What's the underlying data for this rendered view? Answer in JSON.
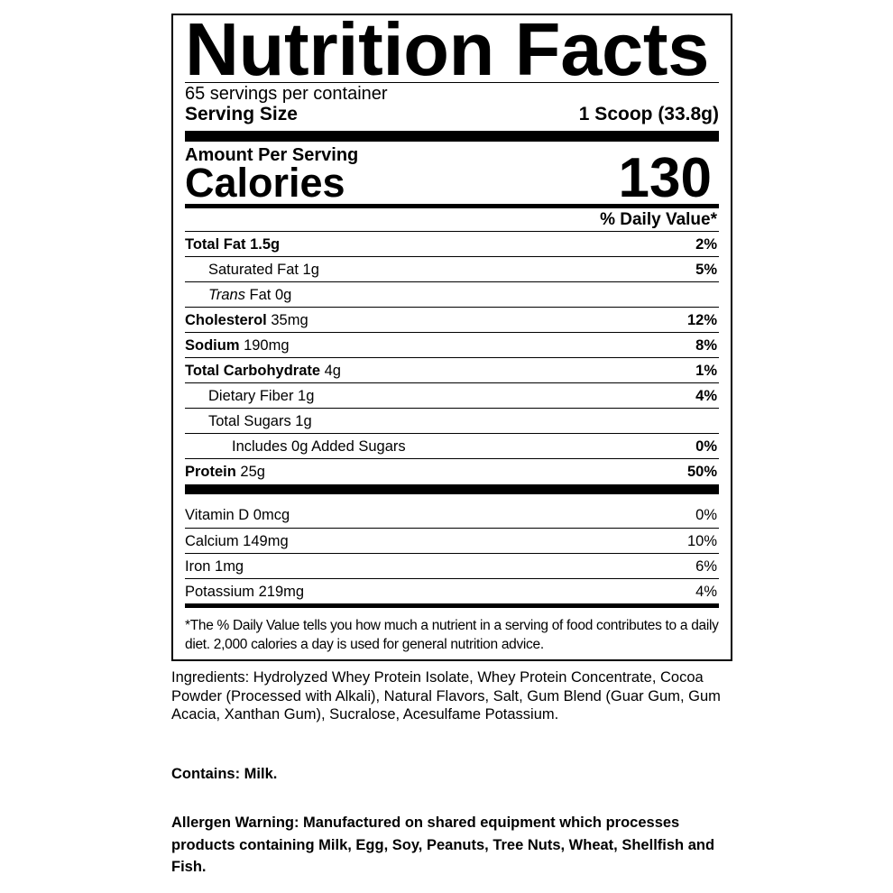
{
  "title": "Nutrition Facts",
  "servings_per_container": "65 servings per container",
  "serving_size_label": "Serving Size",
  "serving_size_value": "1 Scoop (33.8g)",
  "amount_per_serving": "Amount Per Serving",
  "calories_label": "Calories",
  "calories_value": "130",
  "daily_value_header": "% Daily Value*",
  "nutrients": [
    {
      "bold": "Total Fat",
      "rest": " 1.5g",
      "dv": "2%"
    },
    {
      "bold": "",
      "rest": "Saturated Fat 1g",
      "dv": "5%"
    },
    {
      "italic": "Trans",
      "rest": " Fat 0g",
      "dv": ""
    },
    {
      "bold": "Cholesterol",
      "rest": " 35mg",
      "dv": "12%"
    },
    {
      "bold": "Sodium",
      "rest": " 190mg",
      "dv": "8%"
    },
    {
      "bold": "Total Carbohydrate",
      "rest": " 4g",
      "dv": "1%"
    },
    {
      "bold": "",
      "rest": "Dietary Fiber 1g",
      "dv": "4%"
    },
    {
      "bold": "",
      "rest": "Total Sugars 1g",
      "dv": ""
    },
    {
      "bold": "",
      "rest": "Includes 0g Added Sugars",
      "dv": "0%"
    },
    {
      "bold": "Protein",
      "rest": " 25g",
      "dv": "50%"
    }
  ],
  "vitamins": [
    {
      "name": "Vitamin D 0mcg",
      "dv": "0%"
    },
    {
      "name": "Calcium 149mg",
      "dv": "10%"
    },
    {
      "name": "Iron 1mg",
      "dv": "6%"
    },
    {
      "name": "Potassium 219mg",
      "dv": "4%"
    }
  ],
  "footnote": "*The % Daily Value tells you how much a nutrient in a serving of food contributes to a daily diet. 2,000 calories a day is used for general nutrition advice.",
  "ingredients": "Ingredients: Hydrolyzed Whey Protein Isolate, Whey Protein Concentrate, Cocoa Powder (Processed with Alkali), Natural Flavors, Salt, Gum Blend (Guar Gum, Gum Acacia, Xanthan Gum), Sucralose, Acesulfame Potassium.",
  "contains": "Contains: Milk.",
  "allergen_warning": "Allergen Warning: Manufactured on shared equipment which processes products containing Milk, Egg, Soy, Peanuts, Tree Nuts, Wheat, Shellfish and Fish."
}
